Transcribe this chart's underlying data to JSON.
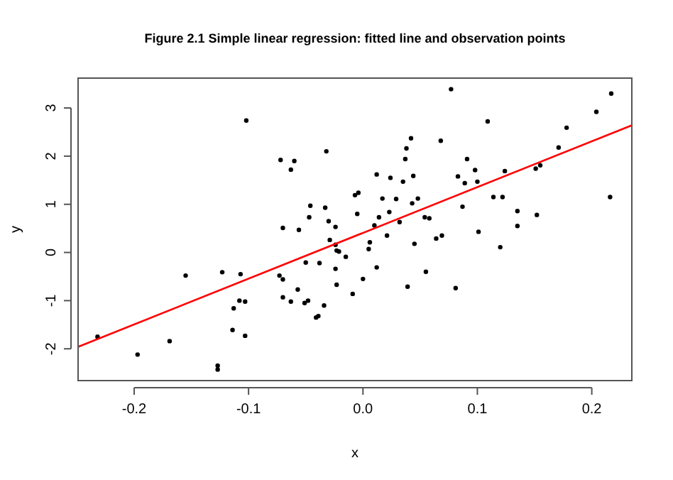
{
  "chart_data": {
    "type": "scatter",
    "title": "Figure 2.1 Simple linear regression: fitted line and observation points",
    "xlabel": "x",
    "ylabel": "y",
    "xlim": [
      -0.249,
      0.235
    ],
    "ylim": [
      -2.66,
      3.62
    ],
    "xticks": [
      -0.2,
      -0.1,
      {
        "value": 0,
        "label": "0.0"
      },
      0.1,
      0.2
    ],
    "yticks": [
      -2,
      -1,
      0,
      1,
      2,
      3
    ],
    "grid": false,
    "marker": "circle",
    "series": [
      {
        "color": "#000000",
        "x": [
          -0.232,
          -0.197,
          -0.169,
          -0.155,
          -0.123,
          -0.127,
          -0.127,
          -0.102,
          -0.107,
          -0.113,
          -0.108,
          -0.103,
          -0.114,
          -0.103,
          -0.072,
          -0.06,
          -0.063,
          -0.032,
          -0.07,
          -0.056,
          -0.046,
          -0.047,
          -0.033,
          -0.03,
          -0.024,
          -0.029,
          -0.024,
          -0.023,
          -0.021,
          -0.015,
          -0.05,
          -0.038,
          -0.024,
          -0.073,
          -0.07,
          -0.057,
          -0.07,
          -0.063,
          -0.051,
          -0.048,
          -0.034,
          -0.041,
          -0.039,
          -0.023,
          -0.009,
          0.0,
          0.012,
          0.005,
          0.006,
          -0.005,
          -0.007,
          -0.004,
          0.01,
          0.014,
          0.021,
          0.017,
          0.012,
          0.024,
          0.023,
          0.029,
          0.032,
          0.035,
          0.037,
          0.038,
          0.042,
          0.044,
          0.043,
          0.048,
          0.045,
          0.039,
          0.055,
          0.054,
          0.058,
          0.064,
          0.068,
          0.077,
          0.069,
          0.083,
          0.089,
          0.091,
          0.098,
          0.1,
          0.087,
          0.101,
          0.081,
          0.109,
          0.114,
          0.122,
          0.124,
          0.12,
          0.135,
          0.135,
          0.152,
          0.151,
          0.155,
          0.171,
          0.178,
          0.204,
          0.217,
          0.216
        ],
        "values": [
          -1.75,
          -2.12,
          -1.84,
          -0.48,
          -0.41,
          -2.35,
          -2.43,
          2.74,
          -0.45,
          -1.16,
          -1.0,
          -1.02,
          -1.61,
          -1.73,
          1.92,
          1.9,
          1.72,
          2.1,
          0.51,
          0.47,
          0.97,
          0.73,
          0.93,
          0.65,
          0.53,
          0.26,
          0.16,
          0.04,
          0.02,
          -0.09,
          -0.21,
          -0.22,
          -0.34,
          -0.48,
          -0.56,
          -0.77,
          -0.93,
          -1.02,
          -1.05,
          -1.0,
          -1.1,
          -1.35,
          -1.32,
          -0.67,
          -0.86,
          -0.55,
          -0.31,
          0.07,
          0.21,
          0.8,
          1.19,
          1.24,
          0.56,
          0.73,
          0.35,
          1.12,
          1.62,
          1.55,
          0.84,
          1.11,
          0.63,
          1.47,
          1.94,
          2.16,
          2.37,
          1.59,
          1.02,
          1.12,
          0.18,
          -0.71,
          -0.4,
          0.73,
          0.71,
          0.29,
          2.32,
          3.39,
          0.35,
          1.58,
          1.44,
          1.94,
          1.71,
          1.47,
          0.95,
          0.43,
          -0.74,
          2.72,
          1.15,
          1.15,
          1.69,
          0.11,
          0.86,
          0.55,
          0.78,
          1.74,
          1.81,
          2.18,
          2.59,
          2.92,
          3.3,
          1.15
        ]
      },
      {
        "type": "line",
        "marker": "none",
        "color": "#ff0000",
        "x": [
          -0.249,
          0.235
        ],
        "values": [
          -1.96,
          2.64
        ]
      }
    ]
  }
}
